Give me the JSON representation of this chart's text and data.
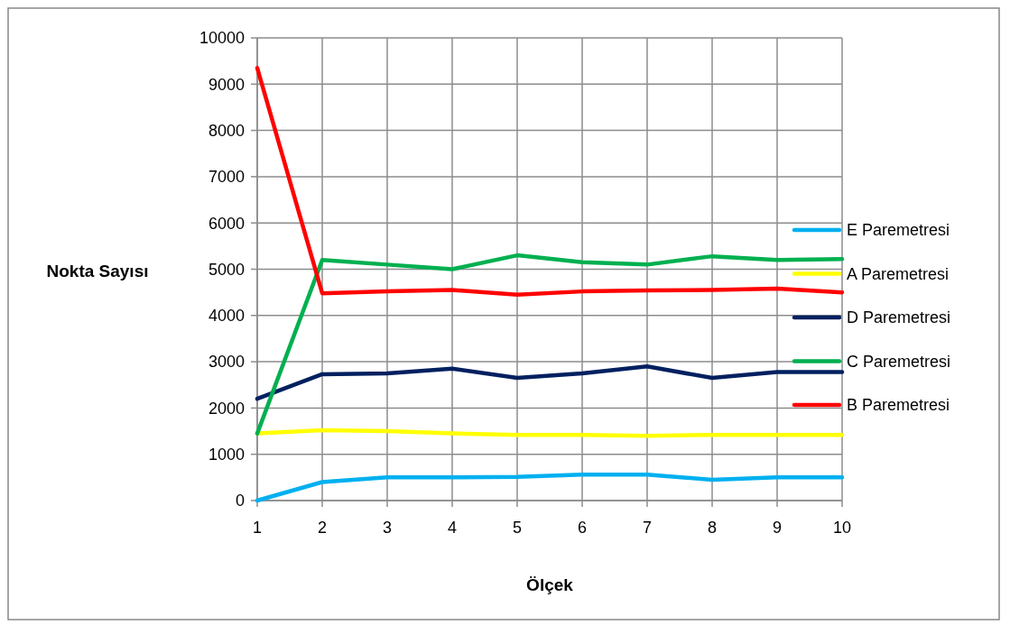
{
  "chart_data": {
    "type": "line",
    "xlabel": "Ölçek",
    "ylabel": "Nokta Sayısı",
    "x": [
      1,
      2,
      3,
      4,
      5,
      6,
      7,
      8,
      9,
      10
    ],
    "xlim": [
      1,
      10
    ],
    "xticks": [
      1,
      2,
      3,
      4,
      5,
      6,
      7,
      8,
      9,
      10
    ],
    "ylim": [
      0,
      10000
    ],
    "yticks": [
      0,
      1000,
      2000,
      3000,
      4000,
      5000,
      6000,
      7000,
      8000,
      9000,
      10000
    ],
    "grid": true,
    "legend": "right",
    "marker": "none",
    "line_style": "solid",
    "series": [
      {
        "name": "E Paremetresi",
        "color": "#00b0f0",
        "values": [
          0,
          400,
          500,
          500,
          510,
          560,
          560,
          450,
          500,
          500
        ]
      },
      {
        "name": "A Paremetresi",
        "color": "#ffff00",
        "values": [
          1450,
          1520,
          1500,
          1450,
          1420,
          1420,
          1400,
          1420,
          1420,
          1420
        ]
      },
      {
        "name": "D Paremetresi",
        "color": "#002060",
        "values": [
          2200,
          2730,
          2750,
          2850,
          2650,
          2750,
          2900,
          2650,
          2780,
          2780
        ]
      },
      {
        "name": "C Paremetresi",
        "color": "#00b050",
        "values": [
          1450,
          5200,
          5100,
          5000,
          5300,
          5150,
          5100,
          5280,
          5200,
          5220
        ]
      },
      {
        "name": "B Paremetresi",
        "color": "#ff0000",
        "values": [
          9350,
          4480,
          4520,
          4550,
          4450,
          4520,
          4540,
          4550,
          4580,
          4500
        ]
      }
    ]
  }
}
